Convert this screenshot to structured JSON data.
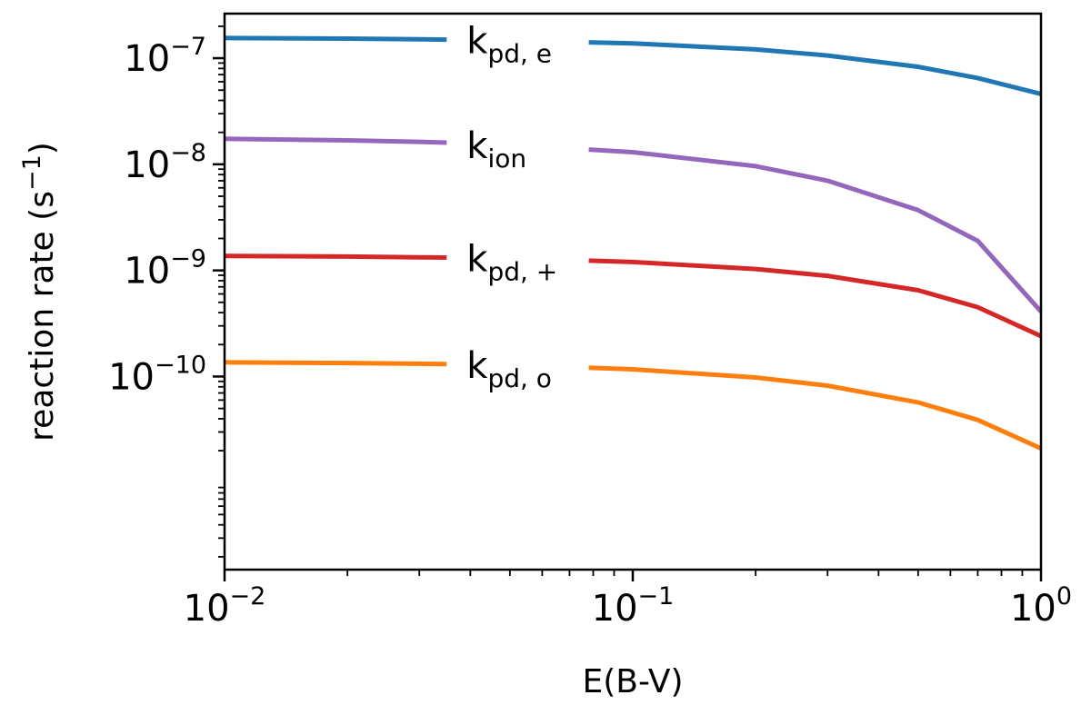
{
  "chart_data": {
    "type": "line",
    "xscale": "log",
    "yscale": "log",
    "xlim": [
      0.01,
      1
    ],
    "ylim_log10": [
      -11.82,
      -6.58
    ],
    "xlabel": "E(B-V)",
    "ylabel_main": "reaction rate (s",
    "ylabel_sup": "−1",
    "ylabel_end": ")",
    "xticks": [
      {
        "value": 0.01,
        "base": "10",
        "exp": "−2"
      },
      {
        "value": 0.1,
        "base": "10",
        "exp": "−1"
      },
      {
        "value": 1,
        "base": "10",
        "exp": "0"
      }
    ],
    "yticks": [
      {
        "value": 1e-07,
        "base": "10",
        "exp": "−7"
      },
      {
        "value": 1e-08,
        "base": "10",
        "exp": "−8"
      },
      {
        "value": 1e-09,
        "base": "10",
        "exp": "−9"
      },
      {
        "value": 1e-10,
        "base": "10",
        "exp": "−10"
      }
    ],
    "series": [
      {
        "name": "k_pd,e",
        "label_main": "k",
        "label_sub": "pd, e",
        "color": "#1f77b4",
        "x": [
          0.01,
          0.02,
          0.03,
          0.05,
          0.1,
          0.2,
          0.3,
          0.5,
          0.7,
          1.0
        ],
        "y": [
          1.55e-07,
          1.53e-07,
          1.51e-07,
          1.47e-07,
          1.38e-07,
          1.21e-07,
          1.06e-07,
          8.3e-08,
          6.5e-08,
          4.6e-08
        ]
      },
      {
        "name": "k_ion",
        "label_main": "k",
        "label_sub": "ion",
        "color": "#9467bd",
        "x": [
          0.01,
          0.02,
          0.03,
          0.05,
          0.1,
          0.2,
          0.3,
          0.5,
          0.7,
          1.0
        ],
        "y": [
          1.74e-08,
          1.68e-08,
          1.63e-08,
          1.53e-08,
          1.3e-08,
          9.6e-09,
          7e-09,
          3.7e-09,
          1.9e-09,
          4.1e-10
        ]
      },
      {
        "name": "k_pd,+",
        "label_main": "k",
        "label_sub": "pd, +",
        "color": "#d62728",
        "x": [
          0.01,
          0.02,
          0.03,
          0.05,
          0.1,
          0.2,
          0.3,
          0.5,
          0.7,
          1.0
        ],
        "y": [
          1.37e-09,
          1.35e-09,
          1.33e-09,
          1.3e-09,
          1.2e-09,
          1.03e-09,
          8.9e-10,
          6.5e-10,
          4.5e-10,
          2.4e-10
        ]
      },
      {
        "name": "k_pd,o",
        "label_main": "k",
        "label_sub": "pd, o",
        "color": "#ff7f0e",
        "x": [
          0.01,
          0.02,
          0.03,
          0.05,
          0.1,
          0.2,
          0.3,
          0.5,
          0.7,
          1.0
        ],
        "y": [
          1.36e-10,
          1.34e-10,
          1.32e-10,
          1.28e-10,
          1.17e-10,
          9.8e-11,
          8.2e-11,
          5.7e-11,
          3.9e-11,
          2.1e-11
        ]
      }
    ],
    "label_gap_x": [
      0.035,
      0.078
    ]
  }
}
